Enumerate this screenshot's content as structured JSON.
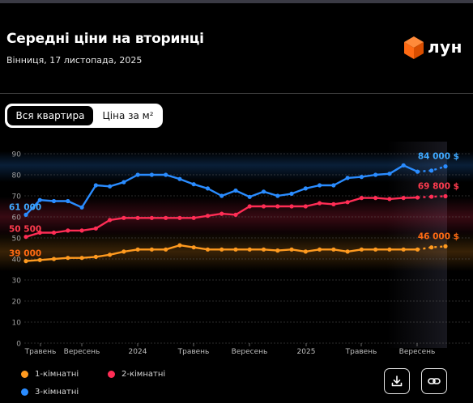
{
  "header": {
    "title": "Середні ціни на вторинці",
    "subtitle": "Вінниця, 17 листопада, 2025",
    "logo_text": "лун",
    "logo_color": "#ff6a13"
  },
  "tabs": [
    {
      "label": "Вся квартира",
      "active": true
    },
    {
      "label": "Ціна за м²",
      "active": false
    }
  ],
  "legend": [
    {
      "label": "1-кімнатні",
      "color": "#ff9a1f"
    },
    {
      "label": "2-кімнатні",
      "color": "#ff2d55"
    },
    {
      "label": "3-кімнатні",
      "color": "#2a8cff"
    }
  ],
  "actions": {
    "download_icon": "download-icon",
    "link_icon": "link-icon"
  },
  "chart_data": {
    "type": "line",
    "yticks": [
      0,
      10,
      20,
      30,
      40,
      50,
      60,
      70,
      80,
      90
    ],
    "ylim": [
      0,
      90
    ],
    "grid": true,
    "x_tick_labels": [
      "Травень",
      "Вересень",
      "2024",
      "Травень",
      "Вересень",
      "2025",
      "Травень",
      "Вересень"
    ],
    "series": [
      {
        "name": "3-кімнатні",
        "color": "#2a8cff",
        "label_color": "#3fa9ff",
        "start_label": "61 000",
        "end_label": "84 000 $",
        "values": [
          61,
          68,
          67.5,
          67.5,
          64.5,
          75,
          74.5,
          76.5,
          80,
          80,
          80,
          78,
          75.5,
          73.5,
          70,
          72.5,
          69.5,
          72,
          70,
          71,
          73.5,
          75,
          75,
          78.5,
          79,
          80,
          80.5,
          84.5,
          81.5,
          82,
          84
        ]
      },
      {
        "name": "2-кімнатні",
        "color": "#ff2d55",
        "label_color": "#ff3b4e",
        "start_label": "50 500",
        "end_label": "69 800 $",
        "values": [
          50.5,
          52.5,
          52.5,
          53.5,
          53.5,
          54.5,
          58.5,
          59.5,
          59.5,
          59.5,
          59.5,
          59.5,
          59.5,
          60.5,
          61.5,
          61,
          65,
          65,
          65,
          65,
          65,
          66.5,
          66,
          67,
          69,
          69,
          68.5,
          69,
          69.2,
          69.6,
          69.8
        ]
      },
      {
        "name": "1-кімнатні",
        "color": "#ff9a1f",
        "label_color": "#ff6a13",
        "start_label": "39 000",
        "end_label": "46 000 $",
        "values": [
          39,
          39.5,
          40,
          40.5,
          40.5,
          41,
          42,
          43.5,
          44.5,
          44.5,
          44.5,
          46.5,
          45.5,
          44.5,
          44.5,
          44.5,
          44.5,
          44.5,
          44,
          44.5,
          43.5,
          44.5,
          44.5,
          43.5,
          44.5,
          44.5,
          44.5,
          44.5,
          44.5,
          45.5,
          46
        ]
      }
    ]
  }
}
